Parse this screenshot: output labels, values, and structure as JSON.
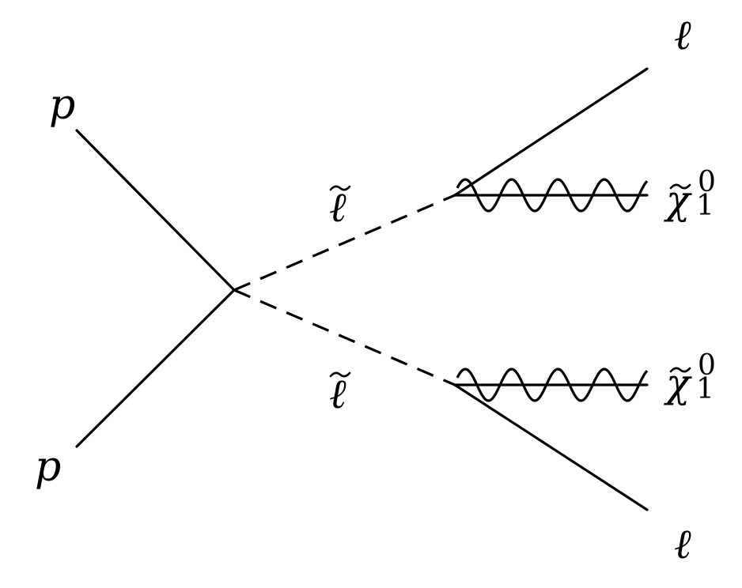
{
  "particles": {
    "proton_top": "p",
    "proton_bottom": "p",
    "slepton_top": "ℓ",
    "slepton_bottom": "ℓ",
    "lepton_top": "ℓ",
    "lepton_bottom": "ℓ",
    "neutralino_top": {
      "symbol": "χ",
      "subscript": "1",
      "superscript": "0"
    },
    "neutralino_bottom": {
      "symbol": "χ",
      "subscript": "1",
      "superscript": "0"
    }
  },
  "colors": {
    "ink": "#000000",
    "background": "#ffffff"
  }
}
